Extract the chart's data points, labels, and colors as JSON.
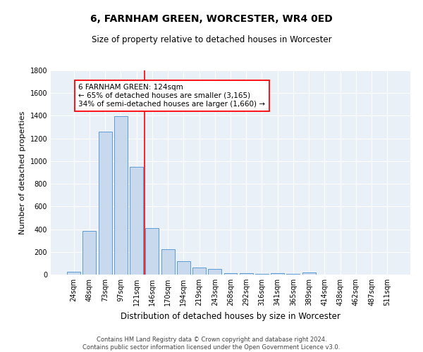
{
  "title": "6, FARNHAM GREEN, WORCESTER, WR4 0ED",
  "subtitle": "Size of property relative to detached houses in Worcester",
  "xlabel": "Distribution of detached houses by size in Worcester",
  "ylabel": "Number of detached properties",
  "footer_line1": "Contains HM Land Registry data © Crown copyright and database right 2024.",
  "footer_line2": "Contains public sector information licensed under the Open Government Licence v3.0.",
  "bin_labels": [
    "24sqm",
    "48sqm",
    "73sqm",
    "97sqm",
    "121sqm",
    "146sqm",
    "170sqm",
    "194sqm",
    "219sqm",
    "243sqm",
    "268sqm",
    "292sqm",
    "316sqm",
    "341sqm",
    "365sqm",
    "389sqm",
    "414sqm",
    "438sqm",
    "462sqm",
    "487sqm",
    "511sqm"
  ],
  "bin_values": [
    25,
    385,
    1260,
    1395,
    950,
    410,
    225,
    115,
    65,
    50,
    15,
    10,
    5,
    10,
    5,
    20,
    0,
    0,
    0,
    0,
    0
  ],
  "bar_color": "#c9d9ed",
  "bar_edge_color": "#5b9bd5",
  "background_color": "#eaf0f8",
  "grid_color": "#ffffff",
  "red_line_x": 4.5,
  "annotation_line1": "6 FARNHAM GREEN: 124sqm",
  "annotation_line2": "← 65% of detached houses are smaller (3,165)",
  "annotation_line3": "34% of semi-detached houses are larger (1,660) →",
  "ylim": [
    0,
    1800
  ],
  "yticks": [
    0,
    200,
    400,
    600,
    800,
    1000,
    1200,
    1400,
    1600,
    1800
  ],
  "title_fontsize": 10,
  "subtitle_fontsize": 8.5,
  "ylabel_fontsize": 8,
  "xlabel_fontsize": 8.5,
  "tick_fontsize": 7,
  "footer_fontsize": 6,
  "annot_fontsize": 7.5
}
